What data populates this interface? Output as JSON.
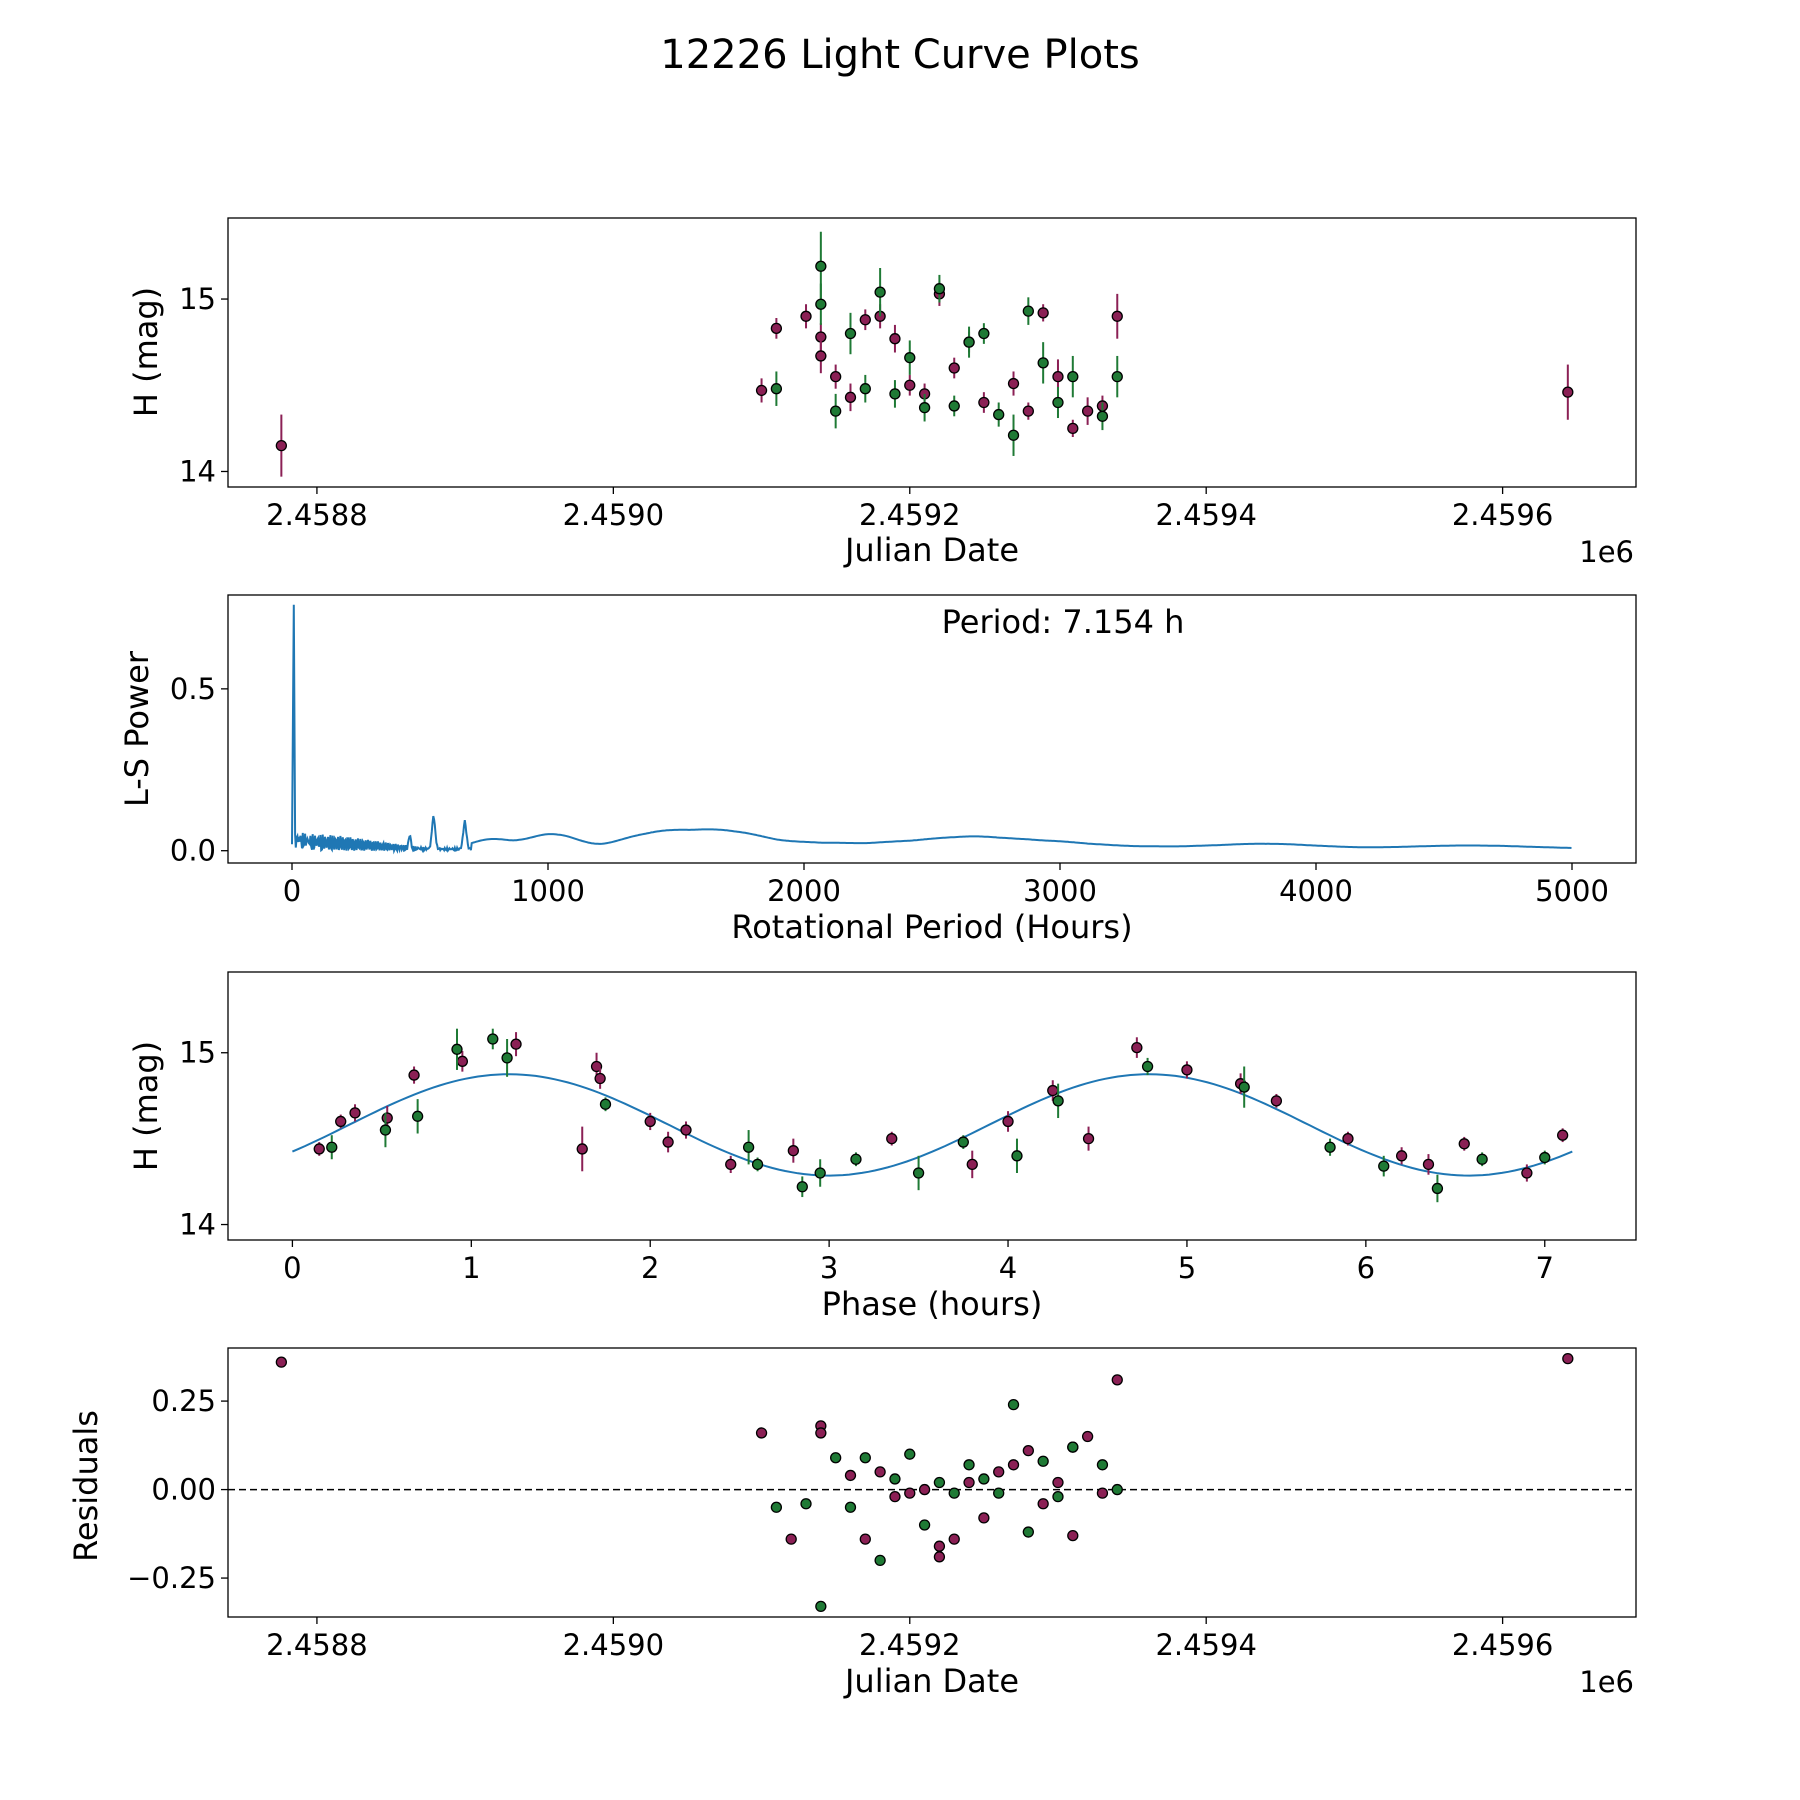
{
  "figure": {
    "title": "12226 Light Curve Plots"
  },
  "colors": {
    "series_a": "#8b2055",
    "series_b": "#1f7a35",
    "line": "#1f77b4",
    "edge": "#000000"
  },
  "chart_data": [
    {
      "id": "lightcurve",
      "type": "scatter",
      "xlabel": "Julian Date",
      "ylabel": "H (mag)",
      "x_offset_label": "1e6",
      "xlim": [
        2.45874,
        2.45969
      ],
      "ylim": [
        13.91,
        15.47
      ],
      "xticks": [
        2.4588,
        2.459,
        2.4592,
        2.4594,
        2.4596
      ],
      "xtick_labels": [
        "2.4588",
        "2.4590",
        "2.4592",
        "2.4594",
        "2.4596"
      ],
      "yticks": [
        14,
        15
      ],
      "ytick_labels": [
        "14",
        "15"
      ],
      "series": [
        {
          "name": "magenta",
          "x": [
            2.458776,
            2.4591,
            2.45911,
            2.45913,
            2.45914,
            2.45914,
            2.45915,
            2.45916,
            2.45917,
            2.45918,
            2.45919,
            2.4592,
            2.45921,
            2.45922,
            2.45923,
            2.45924,
            2.45925,
            2.45927,
            2.45928,
            2.45929,
            2.4593,
            2.45931,
            2.45932,
            2.45933,
            2.45934,
            2.459644
          ],
          "y": [
            14.15,
            14.47,
            14.83,
            14.9,
            14.78,
            14.67,
            14.55,
            14.43,
            14.88,
            14.9,
            14.77,
            14.5,
            14.45,
            15.03,
            14.6,
            14.75,
            14.4,
            14.51,
            14.35,
            14.92,
            14.55,
            14.25,
            14.35,
            14.38,
            14.9,
            14.46
          ],
          "err": [
            0.18,
            0.07,
            0.06,
            0.07,
            0.08,
            0.1,
            0.07,
            0.08,
            0.06,
            0.07,
            0.08,
            0.06,
            0.06,
            0.07,
            0.06,
            0.06,
            0.06,
            0.07,
            0.05,
            0.05,
            0.1,
            0.05,
            0.08,
            0.06,
            0.13,
            0.16
          ]
        },
        {
          "name": "green",
          "x": [
            2.45911,
            2.45914,
            2.45914,
            2.45915,
            2.45916,
            2.45917,
            2.45918,
            2.45919,
            2.4592,
            2.45921,
            2.45922,
            2.45923,
            2.45924,
            2.45925,
            2.45926,
            2.45927,
            2.45928,
            2.45929,
            2.4593,
            2.45931,
            2.45933,
            2.45934
          ],
          "y": [
            14.48,
            15.19,
            14.97,
            14.35,
            14.8,
            14.48,
            15.04,
            14.45,
            14.66,
            14.37,
            15.06,
            14.38,
            14.75,
            14.8,
            14.33,
            14.21,
            14.93,
            14.63,
            14.4,
            14.55,
            14.32,
            14.55
          ],
          "err": [
            0.1,
            0.2,
            0.12,
            0.1,
            0.12,
            0.08,
            0.14,
            0.08,
            0.1,
            0.08,
            0.08,
            0.06,
            0.09,
            0.06,
            0.07,
            0.12,
            0.08,
            0.12,
            0.09,
            0.12,
            0.08,
            0.12
          ]
        }
      ]
    },
    {
      "id": "periodogram",
      "type": "line",
      "xlabel": "Rotational Period (Hours)",
      "ylabel": "L-S Power",
      "annotation": "Period: 7.154 h",
      "xlim": [
        -250,
        5250
      ],
      "ylim": [
        -0.038,
        0.79
      ],
      "xticks": [
        0,
        1000,
        2000,
        3000,
        4000,
        5000
      ],
      "xtick_labels": [
        "0",
        "1000",
        "2000",
        "3000",
        "4000",
        "5000"
      ],
      "yticks": [
        0.0,
        0.5
      ],
      "ytick_labels": [
        "0.0",
        "0.5"
      ],
      "peak": {
        "x": 7.154,
        "y": 0.76
      }
    },
    {
      "id": "phased",
      "type": "scatter",
      "xlabel": "Phase (hours)",
      "ylabel": "H (mag)",
      "xlim": [
        -0.36,
        7.51
      ],
      "ylim": [
        13.91,
        15.47
      ],
      "xticks": [
        0,
        1,
        2,
        3,
        4,
        5,
        6,
        7
      ],
      "xtick_labels": [
        "0",
        "1",
        "2",
        "3",
        "4",
        "5",
        "6",
        "7"
      ],
      "yticks": [
        14,
        15
      ],
      "ytick_labels": [
        "14",
        "15"
      ],
      "model": {
        "mean": 14.58,
        "amplitude": 0.295,
        "period": 7.154,
        "peak_phase": 1.21
      },
      "series": [
        {
          "name": "magenta",
          "x": [
            0.15,
            0.27,
            0.35,
            0.53,
            0.68,
            0.95,
            1.25,
            1.62,
            1.7,
            1.72,
            2.0,
            2.1,
            2.2,
            2.45,
            2.8,
            3.35,
            3.8,
            4.0,
            4.25,
            4.45,
            4.72,
            5.0,
            5.3,
            5.5,
            5.9,
            6.2,
            6.35,
            6.55,
            6.9,
            7.1
          ],
          "y": [
            14.44,
            14.6,
            14.65,
            14.62,
            14.87,
            14.95,
            15.05,
            14.44,
            14.92,
            14.85,
            14.6,
            14.48,
            14.55,
            14.35,
            14.43,
            14.5,
            14.35,
            14.6,
            14.78,
            14.5,
            15.03,
            14.9,
            14.82,
            14.72,
            14.5,
            14.4,
            14.35,
            14.47,
            14.3,
            14.52
          ],
          "err": [
            0.04,
            0.04,
            0.05,
            0.07,
            0.05,
            0.06,
            0.07,
            0.13,
            0.08,
            0.06,
            0.05,
            0.06,
            0.05,
            0.05,
            0.07,
            0.04,
            0.08,
            0.06,
            0.06,
            0.07,
            0.06,
            0.05,
            0.06,
            0.04,
            0.04,
            0.05,
            0.06,
            0.04,
            0.05,
            0.04
          ]
        },
        {
          "name": "green",
          "x": [
            0.22,
            0.52,
            0.7,
            0.92,
            1.12,
            1.2,
            1.75,
            2.55,
            2.6,
            2.85,
            2.95,
            3.15,
            3.5,
            3.75,
            4.05,
            4.28,
            4.78,
            5.32,
            5.8,
            6.1,
            6.4,
            6.65,
            7.0
          ],
          "y": [
            14.45,
            14.55,
            14.63,
            15.02,
            15.08,
            14.97,
            14.7,
            14.45,
            14.35,
            14.22,
            14.3,
            14.38,
            14.3,
            14.48,
            14.4,
            14.72,
            14.92,
            14.8,
            14.45,
            14.34,
            14.21,
            14.38,
            14.39
          ],
          "err": [
            0.07,
            0.1,
            0.1,
            0.12,
            0.06,
            0.11,
            0.04,
            0.1,
            0.04,
            0.06,
            0.08,
            0.04,
            0.1,
            0.04,
            0.1,
            0.1,
            0.05,
            0.12,
            0.05,
            0.06,
            0.08,
            0.04,
            0.04
          ]
        }
      ]
    },
    {
      "id": "residuals",
      "type": "scatter",
      "xlabel": "Julian Date",
      "ylabel": "Residuals",
      "x_offset_label": "1e6",
      "xlim": [
        2.45874,
        2.45969
      ],
      "ylim": [
        -0.36,
        0.4
      ],
      "xticks": [
        2.4588,
        2.459,
        2.4592,
        2.4594,
        2.4596
      ],
      "xtick_labels": [
        "2.4588",
        "2.4590",
        "2.4592",
        "2.4594",
        "2.4596"
      ],
      "yticks": [
        0.25,
        0.0,
        -0.25
      ],
      "ytick_labels": [
        "0.25",
        "0.00",
        "−0.25"
      ],
      "zero_line": 0.0,
      "series": [
        {
          "name": "magenta",
          "x": [
            2.458776,
            2.4591,
            2.45912,
            2.45914,
            2.45914,
            2.45916,
            2.45917,
            2.45918,
            2.45919,
            2.4592,
            2.45921,
            2.45922,
            2.45922,
            2.45923,
            2.45924,
            2.45925,
            2.45926,
            2.45927,
            2.45928,
            2.45929,
            2.4593,
            2.45931,
            2.45931,
            2.45932,
            2.45933,
            2.45934,
            2.459644
          ],
          "y": [
            0.36,
            0.16,
            -0.14,
            0.18,
            0.16,
            0.04,
            -0.14,
            0.05,
            -0.02,
            -0.01,
            0.0,
            -0.16,
            -0.19,
            -0.14,
            0.02,
            -0.08,
            0.05,
            0.07,
            0.11,
            -0.04,
            0.02,
            -0.13,
            0.12,
            0.15,
            -0.01,
            0.31,
            0.37
          ],
          "err": []
        },
        {
          "name": "green",
          "x": [
            2.45911,
            2.45913,
            2.45914,
            2.45915,
            2.45916,
            2.45917,
            2.45918,
            2.45919,
            2.4592,
            2.45921,
            2.45922,
            2.45923,
            2.45924,
            2.45925,
            2.45926,
            2.45927,
            2.45928,
            2.45929,
            2.4593,
            2.45931,
            2.45933,
            2.45934
          ],
          "y": [
            -0.05,
            -0.04,
            -0.33,
            0.09,
            -0.05,
            0.09,
            -0.2,
            0.03,
            0.1,
            -0.1,
            0.02,
            -0.01,
            0.07,
            0.03,
            -0.01,
            0.24,
            -0.12,
            0.08,
            -0.02,
            0.12,
            0.07,
            0.0
          ],
          "err": []
        }
      ]
    }
  ]
}
